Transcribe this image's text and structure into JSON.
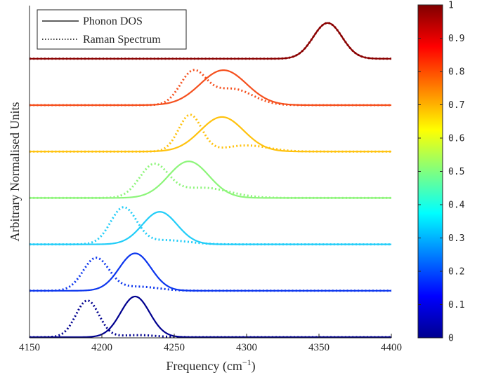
{
  "chart_data": {
    "type": "line",
    "xlabel": "Frequency (cm",
    "xlabel_sup": "−1",
    "xlabel_close": ")",
    "ylabel": "Arbitrary Normalised Units",
    "xlim": [
      4150,
      4400
    ],
    "x_ticks": [
      4150,
      4200,
      4250,
      4300,
      4350,
      4400
    ],
    "grid": false,
    "legend": {
      "placement": "top-left",
      "entries": [
        {
          "label": "Phonon DOS",
          "style": "solid"
        },
        {
          "label": "Raman Spectrum",
          "style": "dotted"
        }
      ]
    },
    "colorbar": {
      "ticks": [
        "0",
        "0.1",
        "0.2",
        "0.3",
        "0.4",
        "0.5",
        "0.6",
        "0.7",
        "0.8",
        "0.9",
        "1"
      ],
      "colormap": "jet"
    },
    "offset_step": 1,
    "series": [
      {
        "colorValue": 0.0,
        "color": "#00008f",
        "offset": 0,
        "dos": [
          {
            "a": 1.0,
            "c": 4223,
            "s": 10
          }
        ],
        "raman": [
          {
            "a": 0.9,
            "c": 4190,
            "s": 8
          },
          {
            "a": 0.05,
            "c": 4225,
            "s": 12
          }
        ]
      },
      {
        "colorValue": 0.2,
        "color": "#0c36ee",
        "offset": 1,
        "dos": [
          {
            "a": 0.92,
            "c": 4223,
            "s": 11
          }
        ],
        "raman": [
          {
            "a": 0.8,
            "c": 4196,
            "s": 9
          },
          {
            "a": 0.1,
            "c": 4225,
            "s": 14
          }
        ]
      },
      {
        "colorValue": 0.4,
        "color": "#22cdf8",
        "offset": 2,
        "dos": [
          {
            "a": 0.8,
            "c": 4240,
            "s": 12
          }
        ],
        "raman": [
          {
            "a": 0.9,
            "c": 4215,
            "s": 9
          },
          {
            "a": 0.1,
            "c": 4245,
            "s": 15
          }
        ]
      },
      {
        "colorValue": 0.6,
        "color": "#8df57a",
        "offset": 3,
        "dos": [
          {
            "a": 0.9,
            "c": 4260,
            "s": 14
          }
        ],
        "raman": [
          {
            "a": 0.8,
            "c": 4236,
            "s": 10
          },
          {
            "a": 0.25,
            "c": 4270,
            "s": 18
          }
        ]
      },
      {
        "colorValue": 0.72,
        "color": "#ffc20e",
        "offset": 4,
        "dos": [
          {
            "a": 0.85,
            "c": 4283,
            "s": 15
          }
        ],
        "raman": [
          {
            "a": 0.9,
            "c": 4261,
            "s": 8
          },
          {
            "a": 0.15,
            "c": 4300,
            "s": 15
          }
        ]
      },
      {
        "colorValue": 0.82,
        "color": "#f5501e",
        "offset": 5,
        "dos": [
          {
            "a": 0.86,
            "c": 4284,
            "s": 16
          }
        ],
        "raman": [
          {
            "a": 0.8,
            "c": 4263,
            "s": 9
          },
          {
            "a": 0.4,
            "c": 4290,
            "s": 14
          }
        ]
      },
      {
        "colorValue": 1.0,
        "color": "#8a0000",
        "offset": 6,
        "dos": [
          {
            "a": 0.88,
            "c": 4356,
            "s": 10
          }
        ],
        "raman": [
          {
            "a": 0.88,
            "c": 4356,
            "s": 10
          }
        ]
      }
    ]
  }
}
